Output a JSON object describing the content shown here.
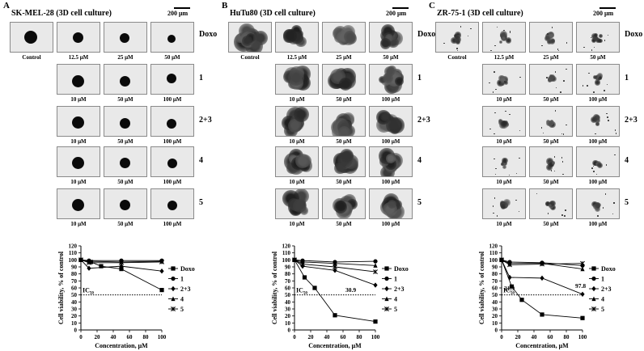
{
  "figure": {
    "panels": [
      {
        "letter": "A",
        "title": "SK-MEL-28 (3D cell culture)",
        "scale_label": "200 μm",
        "doxo_concs": [
          "Control",
          "12.5 μM",
          "25 μM",
          "50 μM"
        ],
        "compound_concs": [
          "10 μM",
          "50 μM",
          "100 μM"
        ],
        "row_labels": [
          "Doxo",
          "1",
          "2+3",
          "4",
          "5"
        ],
        "spheroid_style": "compact"
      },
      {
        "letter": "B",
        "title": "HuTu80 (3D cell culture)",
        "scale_label": "200 μm",
        "doxo_concs": [
          "Control",
          "12.5 μM",
          "25 μM",
          "50 μM"
        ],
        "compound_concs": [
          "10 μM",
          "50 μM",
          "100 μM"
        ],
        "row_labels": [
          "Doxo",
          "1",
          "2+3",
          "4",
          "5"
        ],
        "spheroid_style": "diffuse"
      },
      {
        "letter": "C",
        "title": "ZR-75-1 (3D cell culture)",
        "scale_label": "200 μm",
        "doxo_concs": [
          "Control",
          "12.5 μM",
          "25 μM",
          "50 μM"
        ],
        "compound_concs": [
          "10 μM",
          "50 μM",
          "100 μM"
        ],
        "row_labels": [
          "Doxo",
          "1",
          "2+3",
          "4",
          "5"
        ],
        "spheroid_style": "small"
      }
    ]
  },
  "chart_data": [
    {
      "type": "line",
      "panel": "A",
      "xlabel": "Concentration, μM",
      "ylabel": "Cell viability, % of control",
      "xlim": [
        0,
        100
      ],
      "ylim": [
        0,
        120
      ],
      "xticks": [
        "0",
        "20",
        "40",
        "60",
        "80",
        "100"
      ],
      "yticks": [
        "0",
        "10",
        "20",
        "30",
        "40",
        "50",
        "60",
        "70",
        "80",
        "90",
        "100",
        "110",
        "120"
      ],
      "ic50_label": "IC50",
      "ic50_line": 50,
      "annotations": [],
      "series": [
        {
          "name": "Doxo",
          "marker": "square",
          "x": [
            0,
            12.5,
            25,
            50,
            100
          ],
          "y": [
            100,
            97,
            91,
            87,
            57
          ]
        },
        {
          "name": "1",
          "marker": "circle",
          "x": [
            0,
            10,
            50,
            100
          ],
          "y": [
            100,
            99,
            99,
            99
          ]
        },
        {
          "name": "2+3",
          "marker": "diamond",
          "x": [
            0,
            10,
            50,
            100
          ],
          "y": [
            100,
            88,
            91,
            84
          ]
        },
        {
          "name": "4",
          "marker": "triangle",
          "x": [
            0,
            10,
            50,
            100
          ],
          "y": [
            100,
            98,
            97,
            98
          ]
        },
        {
          "name": "5",
          "marker": "star",
          "x": [
            0,
            10,
            50,
            100
          ],
          "y": [
            100,
            96,
            96,
            97
          ]
        }
      ]
    },
    {
      "type": "line",
      "panel": "B",
      "xlabel": "Concentration, μM",
      "ylabel": "Cell viability, % of control",
      "xlim": [
        0,
        100
      ],
      "ylim": [
        0,
        120
      ],
      "xticks": [
        "0",
        "20",
        "40",
        "60",
        "80",
        "100"
      ],
      "yticks": [
        "0",
        "10",
        "20",
        "30",
        "40",
        "50",
        "60",
        "70",
        "80",
        "90",
        "100",
        "110",
        "120"
      ],
      "ic50_label": "IC50",
      "ic50_line": 50,
      "annotations": [
        "30.9"
      ],
      "series": [
        {
          "name": "Doxo",
          "marker": "square",
          "x": [
            0,
            12.5,
            25,
            50,
            100
          ],
          "y": [
            100,
            75,
            60,
            21,
            12
          ]
        },
        {
          "name": "1",
          "marker": "circle",
          "x": [
            0,
            10,
            50,
            100
          ],
          "y": [
            100,
            99,
            97,
            98
          ]
        },
        {
          "name": "2+3",
          "marker": "diamond",
          "x": [
            0,
            10,
            50,
            100
          ],
          "y": [
            100,
            91,
            85,
            64
          ]
        },
        {
          "name": "4",
          "marker": "triangle",
          "x": [
            0,
            10,
            50,
            100
          ],
          "y": [
            100,
            97,
            95,
            92
          ]
        },
        {
          "name": "5",
          "marker": "star",
          "x": [
            0,
            10,
            50,
            100
          ],
          "y": [
            100,
            94,
            90,
            83
          ]
        }
      ]
    },
    {
      "type": "line",
      "panel": "C",
      "xlabel": "Concentration, μM",
      "ylabel": "Cell viability, % of control",
      "xlim": [
        0,
        100
      ],
      "ylim": [
        0,
        120
      ],
      "xticks": [
        "0",
        "20",
        "40",
        "60",
        "80",
        "100"
      ],
      "yticks": [
        "0",
        "10",
        "20",
        "30",
        "40",
        "50",
        "60",
        "70",
        "80",
        "90",
        "100",
        "110",
        "120"
      ],
      "ic50_label": "IC50",
      "ic50_line": 50,
      "annotations": [
        "21.9",
        "97.8"
      ],
      "series": [
        {
          "name": "Doxo",
          "marker": "square",
          "x": [
            0,
            12.5,
            25,
            50,
            100
          ],
          "y": [
            100,
            62,
            43,
            22,
            17
          ]
        },
        {
          "name": "1",
          "marker": "circle",
          "x": [
            0,
            10,
            50,
            100
          ],
          "y": [
            100,
            97,
            96,
            92
          ]
        },
        {
          "name": "2+3",
          "marker": "diamond",
          "x": [
            0,
            10,
            50,
            100
          ],
          "y": [
            100,
            75,
            74,
            51
          ]
        },
        {
          "name": "4",
          "marker": "triangle",
          "x": [
            0,
            10,
            50,
            100
          ],
          "y": [
            100,
            95,
            95,
            87
          ]
        },
        {
          "name": "5",
          "marker": "star",
          "x": [
            0,
            10,
            50,
            100
          ],
          "y": [
            100,
            93,
            94,
            95
          ]
        }
      ]
    }
  ]
}
